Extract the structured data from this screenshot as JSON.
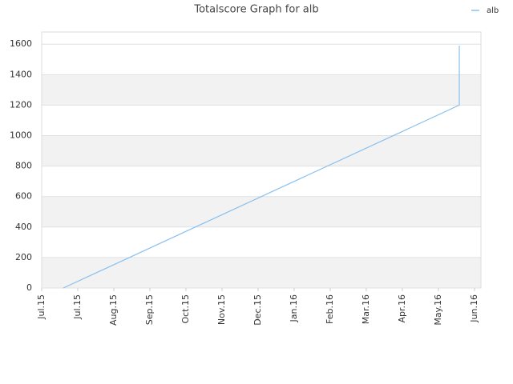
{
  "chart_data": {
    "type": "line",
    "title": "Totalscore Graph for alb",
    "x": [
      0.6,
      11.58,
      11.58
    ],
    "series": [
      {
        "name": "alb",
        "color": "#88c0f0",
        "values": [
          0,
          1200,
          1590
        ]
      }
    ],
    "xlim": [
      0,
      12.18
    ],
    "xticks": [
      {
        "value": 0,
        "label": "Jul.15"
      },
      {
        "value": 1,
        "label": "Jul.15"
      },
      {
        "value": 2,
        "label": "Aug.15"
      },
      {
        "value": 3,
        "label": "Sep.15"
      },
      {
        "value": 4,
        "label": "Oct.15"
      },
      {
        "value": 5,
        "label": "Nov.15"
      },
      {
        "value": 6,
        "label": "Dec.15"
      },
      {
        "value": 7,
        "label": "Jan.16"
      },
      {
        "value": 8,
        "label": "Feb.16"
      },
      {
        "value": 9,
        "label": "Mar.16"
      },
      {
        "value": 10,
        "label": "Apr.16"
      },
      {
        "value": 11,
        "label": "May.16"
      },
      {
        "value": 12,
        "label": "Jun.16"
      }
    ],
    "ylim": [
      0,
      1680
    ],
    "yticks": [
      0,
      200,
      400,
      600,
      800,
      1000,
      1200,
      1400,
      1600
    ],
    "grid": true,
    "legend": "top-right"
  }
}
